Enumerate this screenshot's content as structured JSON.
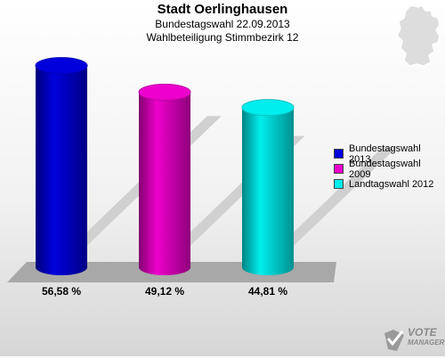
{
  "header": {
    "title": "Stadt Oerlinghausen",
    "subtitle": "Bundestagswahl 22.09.2013",
    "subtitle2": "Wahlbeteiligung Stimmbezirk 12"
  },
  "chart_data": {
    "type": "bar",
    "title": "Stadt Oerlinghausen",
    "categories": [
      "Bundestagswahl 2013",
      "Bundestagswahl 2009",
      "Landtagswahl 2012"
    ],
    "values": [
      56.58,
      49.12,
      44.81
    ],
    "value_labels": [
      "56,58 %",
      "49,12 %",
      "44,81 %"
    ],
    "colors": [
      "#0000dd",
      "#ee00cc",
      "#00eeee"
    ],
    "ylim": [
      0,
      60
    ],
    "grid": false,
    "legend_position": "right"
  },
  "legend": {
    "items": [
      {
        "label": "Bundestagswahl 2013",
        "color": "#0000dd"
      },
      {
        "label": "Bundestagswahl 2009",
        "color": "#ee00cc"
      },
      {
        "label": "Landtagswahl 2012",
        "color": "#00eeee"
      }
    ]
  },
  "logo": {
    "line1": "VOTE",
    "line2": "MANAGER",
    "icon": "vote-manager-logo"
  },
  "map": {
    "icon": "germany-map-icon"
  }
}
